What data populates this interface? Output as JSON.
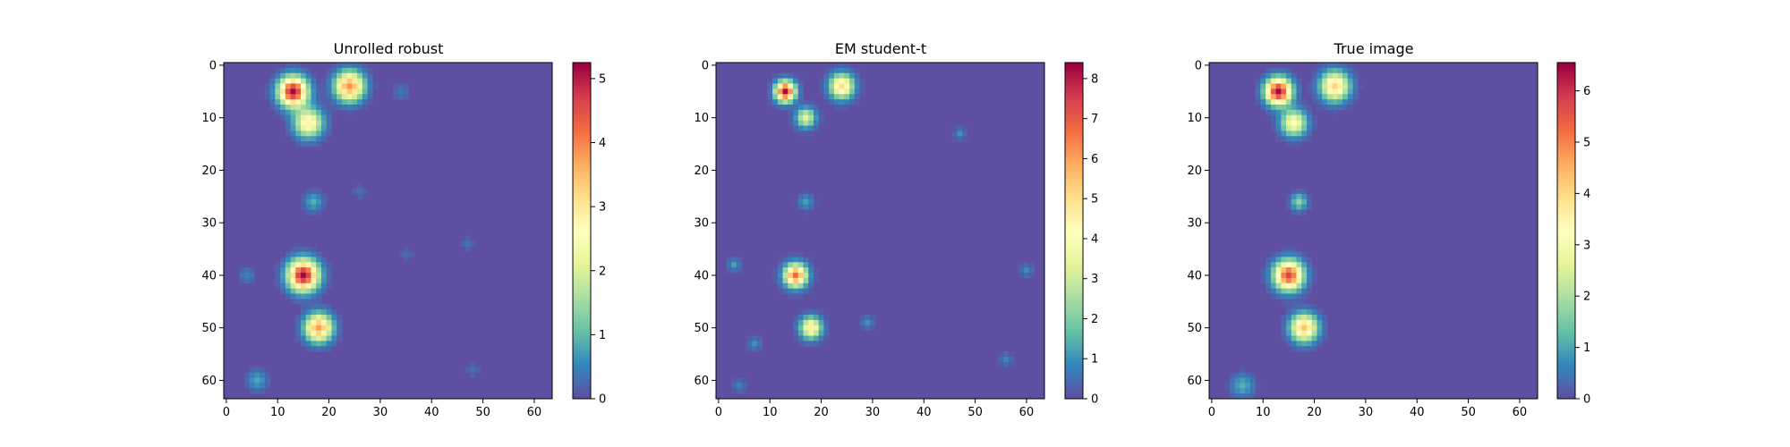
{
  "figure": {
    "panels": [
      {
        "title": "Unrolled robust"
      },
      {
        "title": "EM student-t"
      },
      {
        "title": "True image"
      }
    ]
  },
  "colormap": {
    "name": "Spectral_r",
    "stops": [
      "#5e4fa2",
      "#3288bd",
      "#66c2a5",
      "#abdda4",
      "#e6f598",
      "#ffffbf",
      "#fee08b",
      "#fdae61",
      "#f46d43",
      "#d53e4f",
      "#9e0142"
    ],
    "background": "#5e4fa2"
  },
  "chart_data": [
    {
      "type": "heatmap",
      "title": "Unrolled robust",
      "grid_size": 64,
      "x_ticks": [
        0,
        10,
        20,
        30,
        40,
        50,
        60
      ],
      "y_ticks": [
        0,
        10,
        20,
        30,
        40,
        50,
        60
      ],
      "colorbar": {
        "range": [
          0,
          5.25
        ],
        "ticks": [
          0,
          1,
          2,
          3,
          4,
          5
        ]
      },
      "sources": [
        {
          "x": 13,
          "y": 5,
          "peak": 5.2,
          "sigma": 1.9
        },
        {
          "x": 24,
          "y": 4,
          "peak": 3.9,
          "sigma": 1.9
        },
        {
          "x": 16,
          "y": 11,
          "peak": 2.8,
          "sigma": 1.9
        },
        {
          "x": 15,
          "y": 40,
          "peak": 5.2,
          "sigma": 2.0
        },
        {
          "x": 18,
          "y": 50,
          "peak": 3.8,
          "sigma": 1.8
        },
        {
          "x": 17,
          "y": 26,
          "peak": 0.9,
          "sigma": 1.2
        },
        {
          "x": 6,
          "y": 60,
          "peak": 0.8,
          "sigma": 1.3
        },
        {
          "x": 4,
          "y": 40,
          "peak": 0.5,
          "sigma": 1.0
        },
        {
          "x": 34,
          "y": 5,
          "peak": 0.4,
          "sigma": 1.0
        },
        {
          "x": 47,
          "y": 34,
          "peak": 0.35,
          "sigma": 0.9
        },
        {
          "x": 35,
          "y": 36,
          "peak": 0.25,
          "sigma": 0.9
        },
        {
          "x": 48,
          "y": 58,
          "peak": 0.3,
          "sigma": 1.0
        },
        {
          "x": 26,
          "y": 24,
          "peak": 0.3,
          "sigma": 0.9
        }
      ]
    },
    {
      "type": "heatmap",
      "title": "EM student-t",
      "grid_size": 64,
      "x_ticks": [
        0,
        10,
        20,
        30,
        40,
        50,
        60
      ],
      "y_ticks": [
        0,
        10,
        20,
        30,
        40,
        50,
        60
      ],
      "colorbar": {
        "range": [
          0,
          8.4
        ],
        "ticks": [
          0,
          1,
          2,
          3,
          4,
          5,
          6,
          7,
          8
        ]
      },
      "sources": [
        {
          "x": 13,
          "y": 5,
          "peak": 8.3,
          "sigma": 1.3
        },
        {
          "x": 24,
          "y": 4,
          "peak": 5.0,
          "sigma": 1.6
        },
        {
          "x": 17,
          "y": 10,
          "peak": 3.4,
          "sigma": 1.3
        },
        {
          "x": 15,
          "y": 40,
          "peak": 6.8,
          "sigma": 1.5
        },
        {
          "x": 18,
          "y": 50,
          "peak": 4.6,
          "sigma": 1.4
        },
        {
          "x": 17,
          "y": 26,
          "peak": 1.2,
          "sigma": 1.0
        },
        {
          "x": 3,
          "y": 38,
          "peak": 1.2,
          "sigma": 0.8
        },
        {
          "x": 7,
          "y": 53,
          "peak": 1.0,
          "sigma": 0.8
        },
        {
          "x": 29,
          "y": 49,
          "peak": 1.0,
          "sigma": 0.8
        },
        {
          "x": 47,
          "y": 13,
          "peak": 1.0,
          "sigma": 0.7
        },
        {
          "x": 60,
          "y": 39,
          "peak": 0.9,
          "sigma": 0.8
        },
        {
          "x": 56,
          "y": 56,
          "peak": 0.8,
          "sigma": 0.8
        },
        {
          "x": 4,
          "y": 61,
          "peak": 0.8,
          "sigma": 0.8
        }
      ]
    },
    {
      "type": "heatmap",
      "title": "True image",
      "grid_size": 64,
      "x_ticks": [
        0,
        10,
        20,
        30,
        40,
        50,
        60
      ],
      "y_ticks": [
        0,
        10,
        20,
        30,
        40,
        50,
        60
      ],
      "colorbar": {
        "range": [
          0,
          6.55
        ],
        "ticks": [
          0,
          1,
          2,
          3,
          4,
          5,
          6
        ]
      },
      "sources": [
        {
          "x": 13,
          "y": 5,
          "peak": 6.5,
          "sigma": 1.7
        },
        {
          "x": 24,
          "y": 4,
          "peak": 4.1,
          "sigma": 1.9
        },
        {
          "x": 16,
          "y": 11,
          "peak": 3.3,
          "sigma": 1.7
        },
        {
          "x": 15,
          "y": 40,
          "peak": 5.8,
          "sigma": 1.9
        },
        {
          "x": 18,
          "y": 50,
          "peak": 4.3,
          "sigma": 1.8
        },
        {
          "x": 17,
          "y": 26,
          "peak": 1.7,
          "sigma": 1.1
        },
        {
          "x": 6,
          "y": 61,
          "peak": 1.1,
          "sigma": 1.5
        }
      ]
    }
  ]
}
